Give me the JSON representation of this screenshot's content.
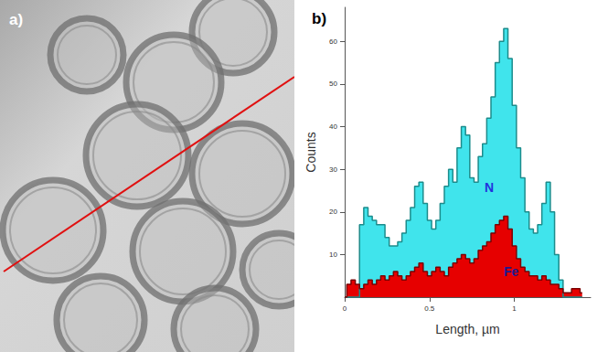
{
  "panel_a": {
    "label": "a)"
  },
  "chart_data": {
    "type": "area",
    "title": "b)",
    "xlabel": "Length, µm",
    "ylabel": "Counts",
    "x": [
      0,
      0.025,
      0.05,
      0.075,
      0.1,
      0.125,
      0.15,
      0.175,
      0.2,
      0.225,
      0.25,
      0.275,
      0.3,
      0.325,
      0.35,
      0.375,
      0.4,
      0.425,
      0.45,
      0.475,
      0.5,
      0.525,
      0.55,
      0.575,
      0.6,
      0.625,
      0.65,
      0.675,
      0.7,
      0.725,
      0.75,
      0.775,
      0.8,
      0.825,
      0.85,
      0.875,
      0.9,
      0.925,
      0.95,
      0.975,
      1,
      1.025,
      1.05,
      1.075,
      1.1,
      1.125,
      1.15,
      1.175,
      1.2,
      1.225,
      1.25,
      1.275,
      1.3,
      1.325,
      1.35,
      1.375,
      1.4
    ],
    "series": [
      {
        "name": "N",
        "color": "#40e4ec",
        "values": [
          0,
          0,
          0,
          0,
          17,
          21,
          19,
          18,
          17,
          17,
          14,
          12,
          12,
          13,
          15,
          18,
          21,
          26,
          27,
          22,
          18,
          16,
          18,
          22,
          26,
          30,
          27,
          35,
          40,
          38,
          28,
          27,
          33,
          36,
          42,
          47,
          55,
          60,
          63,
          56,
          45,
          35,
          28,
          20,
          16,
          15,
          17,
          22,
          27,
          20,
          10,
          4,
          0,
          0,
          0,
          0,
          0
        ]
      },
      {
        "name": "Fe",
        "color": "#e60000",
        "values": [
          0,
          3,
          4,
          3,
          2,
          3,
          4,
          3,
          4,
          5,
          4,
          5,
          6,
          5,
          4,
          5,
          6,
          7,
          8,
          6,
          5,
          6,
          7,
          6,
          5,
          7,
          8,
          9,
          10,
          9,
          8,
          9,
          11,
          12,
          13,
          15,
          17,
          18,
          19,
          16,
          12,
          9,
          7,
          6,
          5,
          5,
          4,
          5,
          4,
          3,
          3,
          2,
          1,
          1,
          2,
          2,
          1
        ]
      }
    ],
    "xlim": [
      0,
      1.45
    ],
    "ylim": [
      0,
      68
    ],
    "xticks": [
      0,
      0.5,
      1
    ],
    "yticks": [
      10,
      20,
      30,
      40,
      50,
      60
    ],
    "grid": false,
    "line_style": "step"
  }
}
